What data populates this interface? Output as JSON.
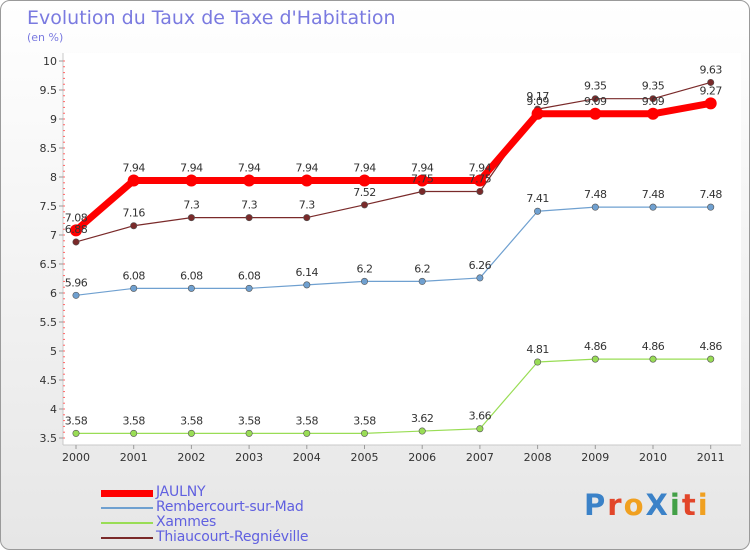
{
  "title": "Evolution du Taux de Taxe d'Habitation",
  "subtitle": "(en %)",
  "logo_text": "ProXiti",
  "chart_data": {
    "type": "line",
    "title": "Evolution du Taux de Taxe d'Habitation",
    "ylabel": "(en %)",
    "xlabel": "",
    "ylim": [
      3.5,
      10
    ],
    "y_ticks": [
      "3.5",
      "4",
      "4.5",
      "5",
      "5.5",
      "6",
      "6.5",
      "7",
      "7.5",
      "8",
      "8.5",
      "9",
      "9.5",
      "10"
    ],
    "categories": [
      "2000",
      "2001",
      "2002",
      "2003",
      "2004",
      "2005",
      "2006",
      "2007",
      "2008",
      "2009",
      "2010",
      "2011"
    ],
    "grid": false,
    "legend_position": "bottom-left",
    "series": [
      {
        "name": "JAULNY",
        "color": "#ff0000",
        "values": [
          7.08,
          7.94,
          7.94,
          7.94,
          7.94,
          7.94,
          7.94,
          7.94,
          9.09,
          9.09,
          9.09,
          9.27
        ]
      },
      {
        "name": "Rembercourt-sur-Mad",
        "color": "#6fa0d0",
        "values": [
          5.96,
          6.08,
          6.08,
          6.08,
          6.14,
          6.2,
          6.2,
          6.26,
          7.41,
          7.48,
          7.48,
          7.48
        ]
      },
      {
        "name": "Xammes",
        "color": "#99dd55",
        "values": [
          3.58,
          3.58,
          3.58,
          3.58,
          3.58,
          3.58,
          3.62,
          3.66,
          4.81,
          4.86,
          4.86,
          4.86
        ]
      },
      {
        "name": "Thiaucourt-Regniéville",
        "color": "#7a2a2a",
        "values": [
          6.88,
          7.16,
          7.3,
          7.3,
          7.3,
          7.52,
          7.75,
          7.75,
          9.17,
          9.35,
          9.35,
          9.63
        ]
      }
    ]
  }
}
